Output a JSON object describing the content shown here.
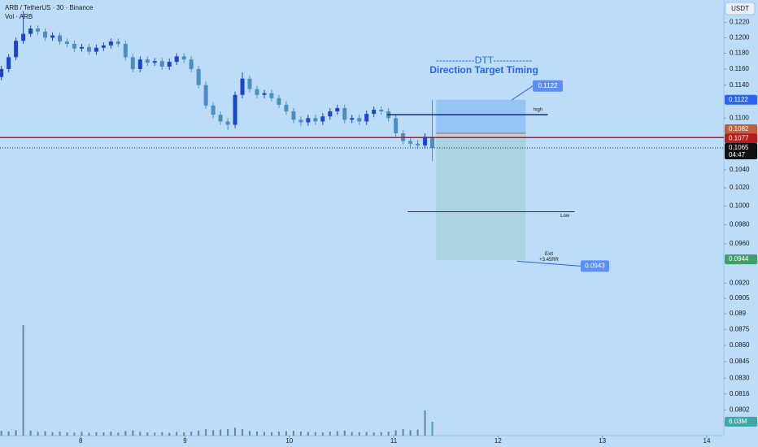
{
  "chart_data": {
    "type": "candlestick",
    "title": "ARB / TetherUS · 30 · Binance",
    "subtitle": "Vol · ARB",
    "currency": "USDT",
    "ylog": true,
    "grid": false,
    "up_color": "#1a47c9",
    "down_color": "#4b8fc2",
    "xlim": [
      7.227,
      14.164
    ],
    "xticks": [
      8,
      9,
      10,
      11,
      12,
      13,
      14
    ],
    "ylim": [
      0.078,
      0.125
    ],
    "yticks": [
      {
        "value": 0.122,
        "label": "0.1220"
      },
      {
        "value": 0.12,
        "label": "0.1200"
      },
      {
        "value": 0.118,
        "label": "0.1180"
      },
      {
        "value": 0.116,
        "label": "0.1160"
      },
      {
        "value": 0.114,
        "label": "0.1140"
      },
      {
        "value": 0.11,
        "label": "0.1100"
      },
      {
        "value": 0.104,
        "label": "0.1040"
      },
      {
        "value": 0.102,
        "label": "0.1020"
      },
      {
        "value": 0.1,
        "label": "0.1000"
      },
      {
        "value": 0.098,
        "label": "0.0980"
      },
      {
        "value": 0.096,
        "label": "0.0960"
      },
      {
        "value": 0.092,
        "label": "0.0920"
      },
      0.0905,
      0.089,
      {
        "value": 0.0875,
        "label": "0.0875"
      },
      {
        "value": 0.086,
        "label": "0.0860"
      },
      0.0845,
      {
        "value": 0.083,
        "label": "0.0830"
      },
      0.0816,
      0.0802
    ],
    "x": [
      7.24,
      7.31,
      7.38,
      7.45,
      7.52,
      7.59,
      7.66,
      7.73,
      7.8,
      7.87,
      7.94,
      8.01,
      8.08,
      8.15,
      8.22,
      8.29,
      8.36,
      8.43,
      8.5,
      8.57,
      8.64,
      8.71,
      8.78,
      8.85,
      8.92,
      8.99,
      9.06,
      9.13,
      9.2,
      9.27,
      9.34,
      9.41,
      9.48,
      9.55,
      9.62,
      9.69,
      9.76,
      9.83,
      9.9,
      9.97,
      10.04,
      10.11,
      10.18,
      10.25,
      10.32,
      10.39,
      10.46,
      10.53,
      10.6,
      10.67,
      10.74,
      10.81,
      10.88,
      10.95,
      11.02,
      11.09,
      11.16,
      11.23,
      11.3,
      11.37
    ],
    "open": [
      0.115,
      0.116,
      0.1175,
      0.1196,
      0.1205,
      0.1212,
      0.1208,
      0.12,
      0.1203,
      0.1195,
      0.1192,
      0.1186,
      0.1188,
      0.1182,
      0.1187,
      0.119,
      0.1195,
      0.1192,
      0.1175,
      0.116,
      0.1172,
      0.1168,
      0.117,
      0.1163,
      0.1169,
      0.1176,
      0.1172,
      0.116,
      0.114,
      0.1115,
      0.1104,
      0.1096,
      0.1092,
      0.1128,
      0.1148,
      0.1135,
      0.1128,
      0.113,
      0.1124,
      0.1116,
      0.1108,
      0.1098,
      0.1095,
      0.11,
      0.1096,
      0.1102,
      0.1108,
      0.1112,
      0.1098,
      0.11,
      0.1096,
      0.1105,
      0.111,
      0.1108,
      0.11,
      0.1082,
      0.1073,
      0.107,
      0.1068,
      0.1078
    ],
    "high": [
      0.1164,
      0.1179,
      0.12,
      0.1235,
      0.1216,
      0.1216,
      0.1212,
      0.1207,
      0.1207,
      0.1199,
      0.1196,
      0.1192,
      0.1192,
      0.1191,
      0.1194,
      0.1199,
      0.1199,
      0.1196,
      0.1179,
      0.1176,
      0.1176,
      0.1174,
      0.1174,
      0.1173,
      0.118,
      0.118,
      0.1176,
      0.1164,
      0.1144,
      0.1119,
      0.1108,
      0.11,
      0.1132,
      0.1156,
      0.1152,
      0.1139,
      0.1134,
      0.1134,
      0.1128,
      0.112,
      0.1112,
      0.1102,
      0.1104,
      0.1104,
      0.1106,
      0.1112,
      0.1116,
      0.1116,
      0.1104,
      0.1104,
      0.1109,
      0.1114,
      0.1114,
      0.1112,
      0.1104,
      0.1086,
      0.1077,
      0.1074,
      0.1082,
      0.1122
    ],
    "low": [
      0.1146,
      0.1156,
      0.1171,
      0.1192,
      0.1201,
      0.1204,
      0.1196,
      0.1196,
      0.1191,
      0.1188,
      0.1182,
      0.1182,
      0.1178,
      0.1178,
      0.1183,
      0.1186,
      0.1188,
      0.1171,
      0.1156,
      0.1156,
      0.1164,
      0.1164,
      0.1159,
      0.1159,
      0.1165,
      0.1168,
      0.1156,
      0.1136,
      0.1111,
      0.11,
      0.1092,
      0.1086,
      0.1088,
      0.1124,
      0.1131,
      0.1124,
      0.1124,
      0.112,
      0.1112,
      0.1104,
      0.1094,
      0.1091,
      0.1091,
      0.1092,
      0.1092,
      0.1098,
      0.1104,
      0.1094,
      0.1094,
      0.1092,
      0.1092,
      0.1101,
      0.1104,
      0.1096,
      0.1078,
      0.1069,
      0.1066,
      0.1064,
      0.1064,
      0.105
    ],
    "close": [
      0.116,
      0.1175,
      0.1196,
      0.1205,
      0.1212,
      0.1208,
      0.12,
      0.1203,
      0.1195,
      0.1192,
      0.1186,
      0.1188,
      0.1182,
      0.1187,
      0.119,
      0.1195,
      0.1192,
      0.1175,
      0.116,
      0.1172,
      0.1168,
      0.117,
      0.1163,
      0.1169,
      0.1176,
      0.1172,
      0.116,
      0.114,
      0.1115,
      0.1104,
      0.1096,
      0.1092,
      0.1128,
      0.1148,
      0.1135,
      0.1128,
      0.113,
      0.1124,
      0.1116,
      0.1108,
      0.1098,
      0.1095,
      0.11,
      0.1096,
      0.1102,
      0.1108,
      0.1112,
      0.1098,
      0.11,
      0.1096,
      0.1105,
      0.111,
      0.1108,
      0.11,
      0.1082,
      0.1073,
      0.107,
      0.1068,
      0.1078,
      0.1065
    ],
    "volume": [
      2.1,
      1.8,
      2.4,
      48,
      2.2,
      1.6,
      1.9,
      1.5,
      1.7,
      1.4,
      1.3,
      1.6,
      1.2,
      1.5,
      1.4,
      1.8,
      1.3,
      2.0,
      2.3,
      1.6,
      1.4,
      1.3,
      1.5,
      1.2,
      1.6,
      1.4,
      1.7,
      2.2,
      2.8,
      2.4,
      2.6,
      2.9,
      3.4,
      2.8,
      2.0,
      1.8,
      1.6,
      1.5,
      1.7,
      1.9,
      2.1,
      1.8,
      1.6,
      1.5,
      1.4,
      1.7,
      1.9,
      2.2,
      1.6,
      1.5,
      1.6,
      1.4,
      1.5,
      1.7,
      2.3,
      2.8,
      2.4,
      2.6,
      11,
      6.03
    ],
    "vol_ylim": [
      0,
      53
    ],
    "volume_color": "#6f8395",
    "volume_last_color": "#3fa6a6",
    "volume_label": "6.03M",
    "countdown": "04:47",
    "support": {
      "price": 0.1077,
      "color": "#b71c1c"
    },
    "lines": [
      {
        "name": "high",
        "price": 0.1104,
        "x": [
          10.938,
          12.477
        ],
        "color": "#102c80"
      },
      {
        "name": "Low",
        "price": 0.0994,
        "x": [
          11.133,
          12.735
        ],
        "color": "#2a3540"
      }
    ],
    "position": {
      "x": [
        11.407,
        12.266
      ],
      "entry": 0.1082,
      "stop": 0.1122,
      "target": 0.0943,
      "exit_level": 0.0944,
      "exit_text": "Exit",
      "rr_text": "+3.45RR",
      "stop_color": "#2962ff",
      "entry_color": "#c0603a",
      "target_color": "#3f9f6a"
    },
    "annotation_title": "------------DTT------------",
    "annotation_subtitle": "Direction Target Timing"
  }
}
